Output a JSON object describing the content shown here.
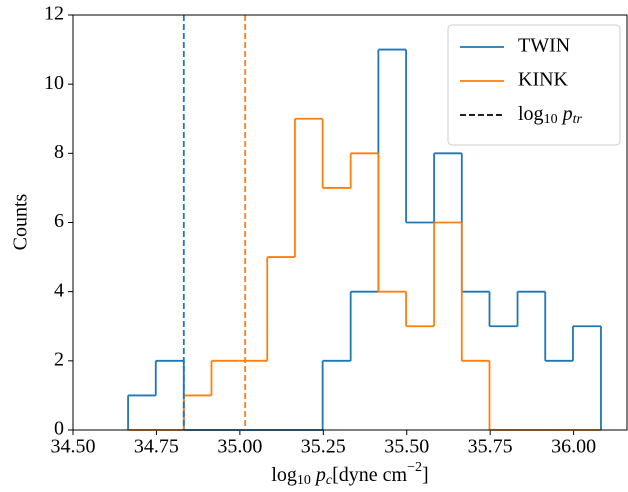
{
  "chart_data": {
    "type": "histogram",
    "x_label": [
      "log",
      "10",
      " p",
      "c",
      "[dyne cm",
      "−2",
      "]"
    ],
    "y_label": "Counts",
    "bins": [
      34.665,
      34.748,
      34.832,
      34.915,
      34.998,
      35.082,
      35.165,
      35.248,
      35.332,
      35.415,
      35.498,
      35.582,
      35.665,
      35.748,
      35.832,
      35.915,
      35.998,
      36.082
    ],
    "series": [
      {
        "name": "TWIN",
        "color": "#1f77b4",
        "values": [
          1,
          2,
          0,
          0,
          0,
          0,
          0,
          2,
          4,
          11,
          6,
          8,
          4,
          3,
          4,
          2,
          3
        ]
      },
      {
        "name": "KINK",
        "color": "#ff7f0e",
        "values": [
          0,
          0,
          1,
          2,
          2,
          5,
          9,
          7,
          8,
          4,
          3,
          6,
          2,
          0,
          0,
          0,
          0
        ]
      }
    ],
    "vlines": [
      {
        "x": 34.832,
        "color": "#1f77b4"
      },
      {
        "x": 35.016,
        "color": "#ff7f0e"
      }
    ],
    "vline_legend": [
      "log",
      "10",
      " p",
      "tr"
    ],
    "legend": "upper right",
    "xlim": [
      34.5,
      36.16
    ],
    "xticks": [
      {
        "value": 34.5,
        "label": "34.50"
      },
      34.75,
      {
        "value": 35.0,
        "label": "35.00"
      },
      35.25,
      {
        "value": 35.5,
        "label": "35.50"
      },
      35.75,
      {
        "value": 36.0,
        "label": "36.00"
      }
    ],
    "ylim": [
      0,
      12
    ],
    "yticks": [
      0,
      2,
      4,
      6,
      8,
      10,
      12
    ]
  }
}
